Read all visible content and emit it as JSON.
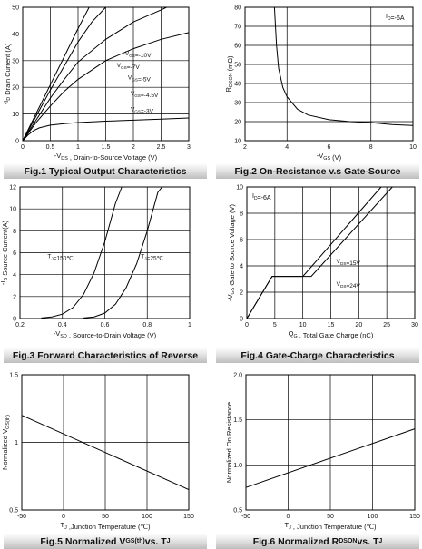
{
  "charts": [
    {
      "caption": "Fig.1 Typical Output Characteristics",
      "chart_data": {
        "type": "line",
        "xlabel": "-V_DS , Drain-to-Source Voltage (V)",
        "ylabel": "-I_D Drain Current (A)",
        "xlim": [
          0,
          3
        ],
        "ylim": [
          0,
          50
        ],
        "xticks": [
          "0",
          "0.5",
          "1",
          "1.5",
          "2",
          "2.5",
          "3"
        ],
        "yticks": [
          "0",
          "10",
          "20",
          "30",
          "40",
          "50"
        ],
        "grid": true,
        "series": [
          {
            "name": "V_GS=-10V",
            "x": [
              0,
              0.25,
              0.5,
              0.75,
              1.0,
              1.2
            ],
            "y": [
              0,
              10.5,
              21,
              31.5,
              42,
              50
            ]
          },
          {
            "name": "V_GS=-7V",
            "x": [
              0,
              0.25,
              0.5,
              0.75,
              1.0,
              1.25,
              1.5
            ],
            "y": [
              0,
              9.5,
              19,
              28,
              37,
              44.5,
              50
            ]
          },
          {
            "name": "V_GS=-5V",
            "x": [
              0,
              0.25,
              0.5,
              0.75,
              1.0,
              1.5,
              2.0,
              2.5,
              2.6
            ],
            "y": [
              0,
              8,
              16,
              23,
              29.5,
              38,
              44.5,
              49,
              50
            ]
          },
          {
            "name": "V_GS=-4.5V",
            "x": [
              0,
              0.25,
              0.5,
              0.75,
              1.0,
              1.5,
              2.0,
              2.5,
              3.0
            ],
            "y": [
              0,
              7,
              13,
              18.5,
              23,
              30,
              34.5,
              38,
              40.5
            ]
          },
          {
            "name": "V_GS=-3V",
            "x": [
              0,
              0.1,
              0.2,
              0.3,
              0.5,
              0.75,
              1.0,
              1.5,
              2.0,
              2.5,
              3.0
            ],
            "y": [
              0,
              2.2,
              3.8,
              4.8,
              5.8,
              6.4,
              6.8,
              7.3,
              7.7,
              8.1,
              8.5
            ]
          }
        ],
        "labels": [
          {
            "text": "V_GS=-10V",
            "x": 1.85,
            "y": 32
          },
          {
            "text": "V_GS=-7V",
            "x": 1.7,
            "y": 27.5
          },
          {
            "text": "V_GS=-5V",
            "x": 1.9,
            "y": 23
          },
          {
            "text": "V_GS=-4.5V",
            "x": 1.95,
            "y": 17
          },
          {
            "text": "V_GS=-3V",
            "x": 1.95,
            "y": 11
          }
        ]
      }
    },
    {
      "caption": "Fig.2 On-Resistance v.s Gate-Source",
      "chart_data": {
        "type": "line",
        "xlabel": "-V_GS (V)",
        "ylabel": "R_DSON (mΩ)",
        "xlim": [
          2,
          10
        ],
        "ylim": [
          10,
          80
        ],
        "xticks": [
          "2",
          "4",
          "6",
          "8",
          "10"
        ],
        "yticks": [
          "10",
          "20",
          "30",
          "40",
          "50",
          "60",
          "70",
          "80"
        ],
        "grid": true,
        "annotation": "I_D=-6A",
        "series": [
          {
            "name": "",
            "x": [
              3.4,
              3.5,
              3.6,
              3.8,
              4.0,
              4.5,
              5.0,
              6.0,
              7.0,
              8.0,
              9.0,
              10.0
            ],
            "y": [
              80,
              60,
              48,
              38,
              33,
              26.5,
              23.5,
              21,
              20,
              19.5,
              18.5,
              18
            ]
          }
        ]
      }
    },
    {
      "caption": "Fig.3 Forward Characteristics of Reverse",
      "chart_data": {
        "type": "line",
        "xlabel": "-V_SD , Source-to-Drain Voltage (V)",
        "ylabel": "-I_S Source Current(A)",
        "xlim": [
          0.2,
          1.0
        ],
        "ylim": [
          0,
          12
        ],
        "xticks": [
          "0.2",
          "0.4",
          "0.6",
          "0.8",
          "1"
        ],
        "yticks": [
          "0",
          "2",
          "4",
          "6",
          "8",
          "10",
          "12"
        ],
        "grid": true,
        "series": [
          {
            "name": "T_J=150℃",
            "x": [
              0.3,
              0.35,
              0.4,
              0.45,
              0.5,
              0.55,
              0.6,
              0.65,
              0.68
            ],
            "y": [
              0.05,
              0.15,
              0.4,
              1.0,
              2.2,
              4.2,
              7.0,
              10.5,
              12
            ]
          },
          {
            "name": "T_J=25℃",
            "x": [
              0.5,
              0.55,
              0.6,
              0.65,
              0.7,
              0.75,
              0.8,
              0.85,
              0.87
            ],
            "y": [
              0.05,
              0.15,
              0.5,
              1.3,
              2.8,
              5.0,
              8.0,
              11.5,
              12
            ]
          }
        ],
        "labels": [
          {
            "text": "T_J=150℃",
            "x": 0.33,
            "y": 5.5
          },
          {
            "text": "T_J=25℃",
            "x": 0.77,
            "y": 5.5
          }
        ]
      }
    },
    {
      "caption": "Fig.4 Gate-Charge Characteristics",
      "chart_data": {
        "type": "line",
        "xlabel": "Q_G , Total Gate Charge (nC)",
        "ylabel": "-V_GS Gate to Source Voltage (V)",
        "xlim": [
          0,
          30
        ],
        "ylim": [
          0,
          10
        ],
        "xticks": [
          "0",
          "5",
          "10",
          "15",
          "20",
          "25",
          "30"
        ],
        "yticks": [
          "0",
          "2",
          "4",
          "6",
          "8",
          "10"
        ],
        "grid": true,
        "annotation": "I_D=-6A",
        "series": [
          {
            "name": "V_DS=15V",
            "x": [
              0,
              4.5,
              10,
              24
            ],
            "y": [
              0,
              3.2,
              3.2,
              10
            ]
          },
          {
            "name": "V_DS=24V",
            "x": [
              0,
              4.5,
              11.5,
              26
            ],
            "y": [
              0,
              3.2,
              3.2,
              10
            ]
          }
        ],
        "labels": [
          {
            "text": "V_DS=15V",
            "x": 16,
            "y": 4.2
          },
          {
            "text": "V_DS=24V",
            "x": 16,
            "y": 2.5
          }
        ]
      }
    },
    {
      "caption": "Fig.5 Normalized V_GS(th) vs. T_J",
      "chart_data": {
        "type": "line",
        "xlabel": "T_J ,Junction Temperature (℃)",
        "ylabel": "Normalized V_GS(th)",
        "xlim": [
          -50,
          150
        ],
        "ylim": [
          0.5,
          1.5
        ],
        "xticks": [
          "-50",
          "0",
          "50",
          "100",
          "150"
        ],
        "yticks": [
          "0.5",
          "1",
          "1.5"
        ],
        "grid": true,
        "series": [
          {
            "name": "",
            "x": [
              -50,
              150
            ],
            "y": [
              1.2,
              0.65
            ]
          }
        ]
      }
    },
    {
      "caption": "Fig.6 Normalized R_DSON vs. T_J",
      "chart_data": {
        "type": "line",
        "xlabel": "T_J , Junction Temperature (℃)",
        "ylabel": "Normalized On Resistance",
        "xlim": [
          -50,
          150
        ],
        "ylim": [
          0.5,
          2.0
        ],
        "xticks": [
          "-50",
          "0",
          "50",
          "100",
          "150"
        ],
        "yticks": [
          "0.5",
          "1.0",
          "1.5",
          "2.0"
        ],
        "grid": true,
        "series": [
          {
            "name": "",
            "x": [
              -50,
              150
            ],
            "y": [
              0.75,
              1.4
            ]
          }
        ]
      }
    }
  ]
}
